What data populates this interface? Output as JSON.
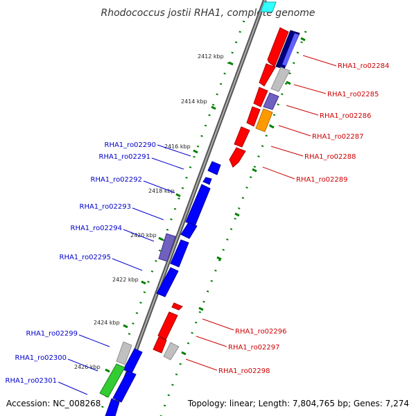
{
  "title": "Rhodococcus jostii RHA1, complete genome",
  "footer": {
    "accession": "Accession: NC_008268",
    "topology": "Topology: linear; Length: 7,804,765 bp; Genes: 7,274"
  },
  "ticks": [
    "2412 kbp",
    "2414 kbp",
    "2416 kbp",
    "2418 kbp",
    "2420 kbp",
    "2422 kbp",
    "2424 kbp",
    "2426 kbp"
  ],
  "labels_right": [
    "RHA1_ro02284",
    "RHA1_ro02285",
    "RHA1_ro02286",
    "RHA1_ro02287",
    "RHA1_ro02288",
    "RHA1_ro02289",
    "RHA1_ro02296",
    "RHA1_ro02297",
    "RHA1_ro02298"
  ],
  "labels_left": [
    "RHA1_ro02290",
    "RHA1_ro02291",
    "RHA1_ro02292",
    "RHA1_ro02293",
    "RHA1_ro02294",
    "RHA1_ro02295",
    "RHA1_ro02299",
    "RHA1_ro02300",
    "RHA1_ro02301"
  ],
  "colors": {
    "forward_strand": "#ff0000",
    "reverse_strand": "#0000ff",
    "grey_gene": "#c0c0c0",
    "purple_gene": "#7060c0",
    "orange_gene": "#ff9900",
    "green_gene": "#33cc33",
    "navy_gene": "#000080",
    "cyan_gene": "#33ffff",
    "backbone": "#808080",
    "dotted_track": "#008000",
    "right_label": "#cc0000",
    "left_label": "#0000cc"
  }
}
